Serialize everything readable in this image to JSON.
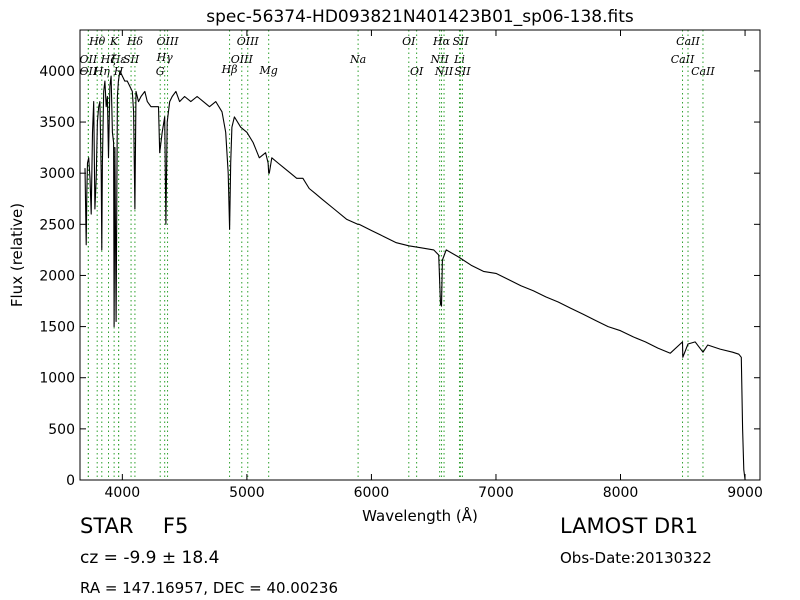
{
  "chart_data": {
    "type": "line",
    "title": "spec-56374-HD093821N401423B01_sp06-138.fits",
    "xlabel": "Wavelength (Å)",
    "ylabel": "Flux (relative)",
    "xlim": [
      3660,
      9120
    ],
    "ylim": [
      0,
      4400
    ],
    "xticks": [
      4000,
      5000,
      6000,
      7000,
      8000,
      9000
    ],
    "yticks": [
      0,
      500,
      1000,
      1500,
      2000,
      2500,
      3000,
      3500,
      4000
    ],
    "grid": false,
    "line_color": "#000000",
    "marker_color": "#2ca02c",
    "series": [
      {
        "x": [
          3700,
          3710,
          3715,
          3720,
          3730,
          3740,
          3750,
          3760,
          3770,
          3780,
          3790,
          3800,
          3810,
          3820,
          3830,
          3835,
          3840,
          3850,
          3860,
          3870,
          3880,
          3889,
          3900,
          3910,
          3920,
          3930,
          3934,
          3940,
          3950,
          3960,
          3968,
          3980,
          4000,
          4020,
          4040,
          4060,
          4080,
          4090,
          4101,
          4110,
          4130,
          4150,
          4180,
          4200,
          4230,
          4260,
          4290,
          4300,
          4320,
          4340,
          4350,
          4360,
          4380,
          4400,
          4430,
          4460,
          4500,
          4550,
          4600,
          4650,
          4700,
          4750,
          4800,
          4830,
          4850,
          4861,
          4870,
          4880,
          4900,
          4950,
          5000,
          5050,
          5100,
          5150,
          5170,
          5175,
          5180,
          5200,
          5250,
          5300,
          5350,
          5400,
          5450,
          5500,
          5550,
          5600,
          5700,
          5800,
          5890,
          5900,
          6000,
          6100,
          6200,
          6300,
          6400,
          6500,
          6540,
          6555,
          6563,
          6570,
          6585,
          6600,
          6700,
          6800,
          6900,
          7000,
          7100,
          7200,
          7300,
          7400,
          7500,
          7600,
          7700,
          7800,
          7900,
          8000,
          8100,
          8200,
          8300,
          8400,
          8498,
          8500,
          8542,
          8600,
          8662,
          8700,
          8800,
          8900,
          8950,
          8970,
          8980,
          8990,
          9000
        ],
        "y": [
          3050,
          2300,
          2800,
          3100,
          3150,
          2950,
          2600,
          3400,
          3700,
          2650,
          2950,
          3500,
          3650,
          3700,
          3000,
          2250,
          3100,
          3800,
          3900,
          3650,
          3750,
          3150,
          3850,
          3950,
          3400,
          3300,
          1500,
          3250,
          1550,
          3750,
          3900,
          4000,
          3950,
          3900,
          3900,
          3850,
          3800,
          3600,
          2650,
          3800,
          3700,
          3750,
          3800,
          3700,
          3650,
          3650,
          3650,
          3200,
          3400,
          3550,
          2500,
          3500,
          3700,
          3750,
          3800,
          3700,
          3750,
          3700,
          3750,
          3700,
          3650,
          3700,
          3600,
          3400,
          3000,
          2450,
          3100,
          3450,
          3550,
          3450,
          3400,
          3300,
          3150,
          3200,
          3100,
          3000,
          3000,
          3150,
          3100,
          3050,
          3000,
          2950,
          2950,
          2850,
          2800,
          2750,
          2650,
          2550,
          2500,
          2500,
          2440,
          2380,
          2320,
          2290,
          2270,
          2250,
          2200,
          1720,
          1700,
          2150,
          2200,
          2250,
          2180,
          2100,
          2040,
          2020,
          1960,
          1900,
          1850,
          1790,
          1740,
          1680,
          1620,
          1560,
          1500,
          1460,
          1400,
          1350,
          1290,
          1240,
          1350,
          1200,
          1330,
          1350,
          1250,
          1320,
          1280,
          1250,
          1230,
          1200,
          500,
          100,
          0
        ]
      }
    ],
    "lines": [
      {
        "name": "OII",
        "x": 3727,
        "label_y": 4078
      },
      {
        "name": "OII",
        "x": 3727,
        "label_y": 3960
      },
      {
        "name": "Hθ",
        "x": 3798,
        "label_y": 4254
      },
      {
        "name": "Hη",
        "x": 3835,
        "label_y": 3960
      },
      {
        "name": "Hζ",
        "x": 3889,
        "label_y": 4078
      },
      {
        "name": "K",
        "x": 3934,
        "label_y": 4254
      },
      {
        "name": "Hε",
        "x": 3970,
        "label_y": 4078
      },
      {
        "name": "H",
        "x": 3970,
        "label_y": 3960
      },
      {
        "name": "SII",
        "x": 4070,
        "label_y": 4078
      },
      {
        "name": "Hδ",
        "x": 4101,
        "label_y": 4254
      },
      {
        "name": "G",
        "x": 4304,
        "label_y": 3960
      },
      {
        "name": "Hγ",
        "x": 4340,
        "label_y": 4096
      },
      {
        "name": "OIII",
        "x": 4363,
        "label_y": 4254
      },
      {
        "name": "Hβ",
        "x": 4861,
        "label_y": 3978
      },
      {
        "name": "OIII",
        "x": 4959,
        "label_y": 4078
      },
      {
        "name": "OIII",
        "x": 5007,
        "label_y": 4254
      },
      {
        "name": "Mg",
        "x": 5175,
        "label_y": 3969
      },
      {
        "name": "Na",
        "x": 5893,
        "label_y": 4078
      },
      {
        "name": "OI",
        "x": 6300,
        "label_y": 4254
      },
      {
        "name": "OI",
        "x": 6363,
        "label_y": 3960
      },
      {
        "name": "NII",
        "x": 6548,
        "label_y": 4078
      },
      {
        "name": "NII",
        "x": 6583,
        "label_y": 3960
      },
      {
        "name": "Hα",
        "x": 6563,
        "label_y": 4254
      },
      {
        "name": "Li",
        "x": 6707,
        "label_y": 4078
      },
      {
        "name": "SII",
        "x": 6716,
        "label_y": 4254
      },
      {
        "name": "SII",
        "x": 6731,
        "label_y": 3960
      },
      {
        "name": "CaII",
        "x": 8498,
        "label_y": 4078
      },
      {
        "name": "CaII",
        "x": 8542,
        "label_y": 4254
      },
      {
        "name": "CaII",
        "x": 8662,
        "label_y": 3960
      }
    ]
  },
  "info": {
    "class": "STAR",
    "subclass": "F5",
    "redshift": "cz = -9.9 ± 18.4",
    "coords": "RA = 147.16957, DEC = 40.00236",
    "survey": "LAMOST DR1",
    "obs_date": "Obs-Date:20130322"
  }
}
